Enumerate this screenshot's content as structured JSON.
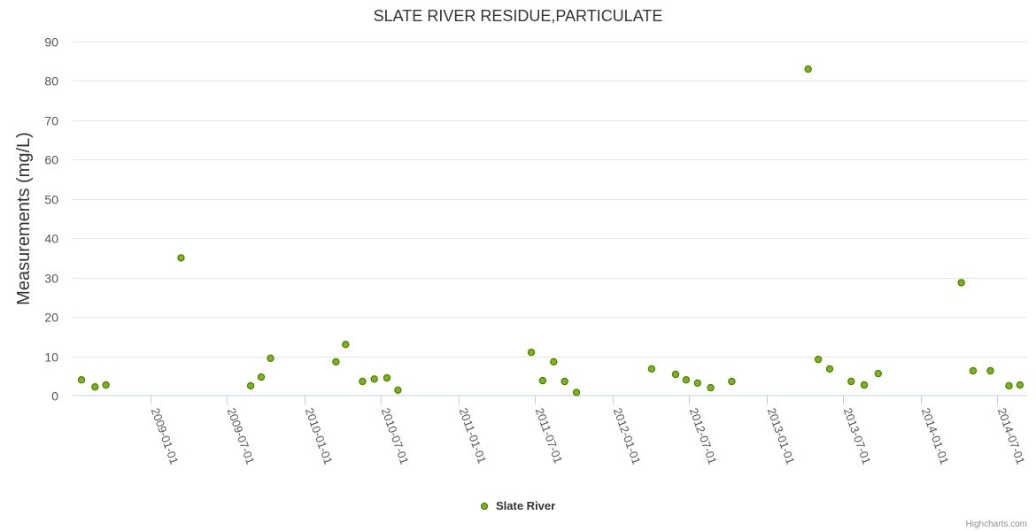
{
  "chart_data": {
    "type": "scatter",
    "title": "SLATE RIVER RESIDUE,PARTICULATE",
    "ylabel": "Measurements (mg/L)",
    "xlabel": "",
    "ylim": [
      0,
      90
    ],
    "yticks": [
      0,
      10,
      20,
      30,
      40,
      50,
      60,
      70,
      80,
      90
    ],
    "xlim": [
      "2008-07-01",
      "2014-09-10"
    ],
    "xticks": [
      "2009-01-01",
      "2009-07-01",
      "2010-01-01",
      "2010-07-01",
      "2011-01-01",
      "2011-07-01",
      "2012-01-01",
      "2012-07-01",
      "2013-01-01",
      "2013-07-01",
      "2014-01-01",
      "2014-07-01"
    ],
    "grid": true,
    "legend": "bottom-center",
    "color": "#7cb518",
    "series": [
      {
        "name": "Slate River",
        "points": [
          {
            "x": "2008-07-22",
            "y": 4.0
          },
          {
            "x": "2008-08-23",
            "y": 2.2
          },
          {
            "x": "2008-09-18",
            "y": 2.7
          },
          {
            "x": "2009-03-15",
            "y": 35.0
          },
          {
            "x": "2009-08-27",
            "y": 2.5
          },
          {
            "x": "2009-09-21",
            "y": 4.7
          },
          {
            "x": "2009-10-13",
            "y": 9.5
          },
          {
            "x": "2010-03-17",
            "y": 8.6
          },
          {
            "x": "2010-04-09",
            "y": 13.0
          },
          {
            "x": "2010-05-19",
            "y": 3.6
          },
          {
            "x": "2010-06-16",
            "y": 4.2
          },
          {
            "x": "2010-07-16",
            "y": 4.5
          },
          {
            "x": "2010-08-11",
            "y": 1.4
          },
          {
            "x": "2011-06-23",
            "y": 11.0
          },
          {
            "x": "2011-07-20",
            "y": 3.8
          },
          {
            "x": "2011-08-15",
            "y": 8.6
          },
          {
            "x": "2011-09-10",
            "y": 3.6
          },
          {
            "x": "2011-10-08",
            "y": 0.8
          },
          {
            "x": "2012-04-03",
            "y": 6.8
          },
          {
            "x": "2012-05-30",
            "y": 5.4
          },
          {
            "x": "2012-06-24",
            "y": 4.0
          },
          {
            "x": "2012-07-21",
            "y": 3.2
          },
          {
            "x": "2012-08-21",
            "y": 2.0
          },
          {
            "x": "2012-10-10",
            "y": 3.6
          },
          {
            "x": "2013-04-09",
            "y": 83.0
          },
          {
            "x": "2013-05-03",
            "y": 9.2
          },
          {
            "x": "2013-05-30",
            "y": 6.8
          },
          {
            "x": "2013-07-20",
            "y": 3.6
          },
          {
            "x": "2013-08-20",
            "y": 2.7
          },
          {
            "x": "2013-09-22",
            "y": 5.6
          },
          {
            "x": "2014-04-07",
            "y": 28.7
          },
          {
            "x": "2014-05-05",
            "y": 6.3
          },
          {
            "x": "2014-06-15",
            "y": 6.3
          },
          {
            "x": "2014-07-29",
            "y": 2.5
          },
          {
            "x": "2014-08-24",
            "y": 2.7
          }
        ]
      }
    ],
    "credits": "Highcharts.com"
  }
}
